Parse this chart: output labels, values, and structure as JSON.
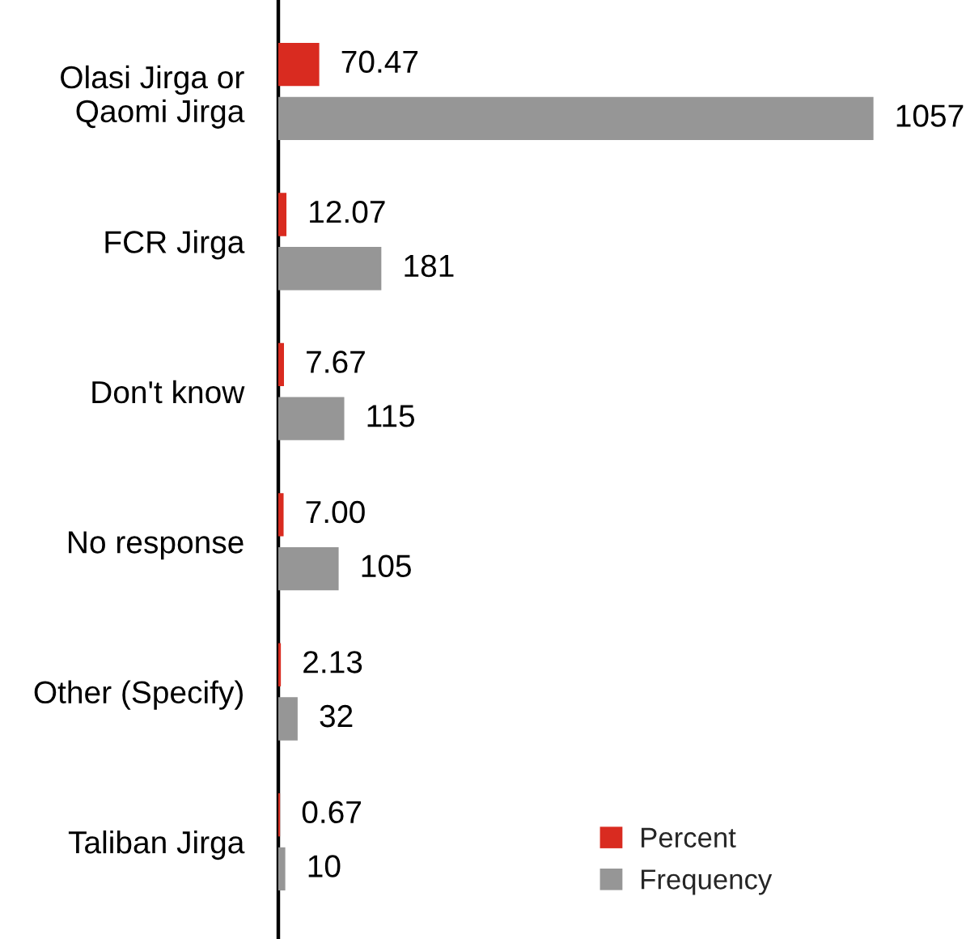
{
  "chart_data": {
    "type": "bar",
    "orientation": "horizontal",
    "categories": [
      "Olasi Jirga or\nQaomi Jirga",
      "FCR Jirga",
      "Don't know",
      "No response",
      "Other (Specify)",
      "Taliban Jirga"
    ],
    "series": [
      {
        "name": "Percent",
        "color": "#d92b20",
        "values": [
          70.47,
          12.07,
          7.67,
          7.0,
          2.13,
          0.67
        ],
        "value_labels": [
          "70.47",
          "12.07",
          "7.67",
          "7.00",
          "2.13",
          "0.67"
        ]
      },
      {
        "name": "Frequency",
        "color": "#969696",
        "values": [
          1057,
          181,
          115,
          105,
          32,
          10
        ],
        "value_labels": [
          "1057",
          "181",
          "115",
          "105",
          "32",
          "10"
        ]
      }
    ],
    "legend": "bottom right",
    "grid": false,
    "tick_labels": "y"
  }
}
